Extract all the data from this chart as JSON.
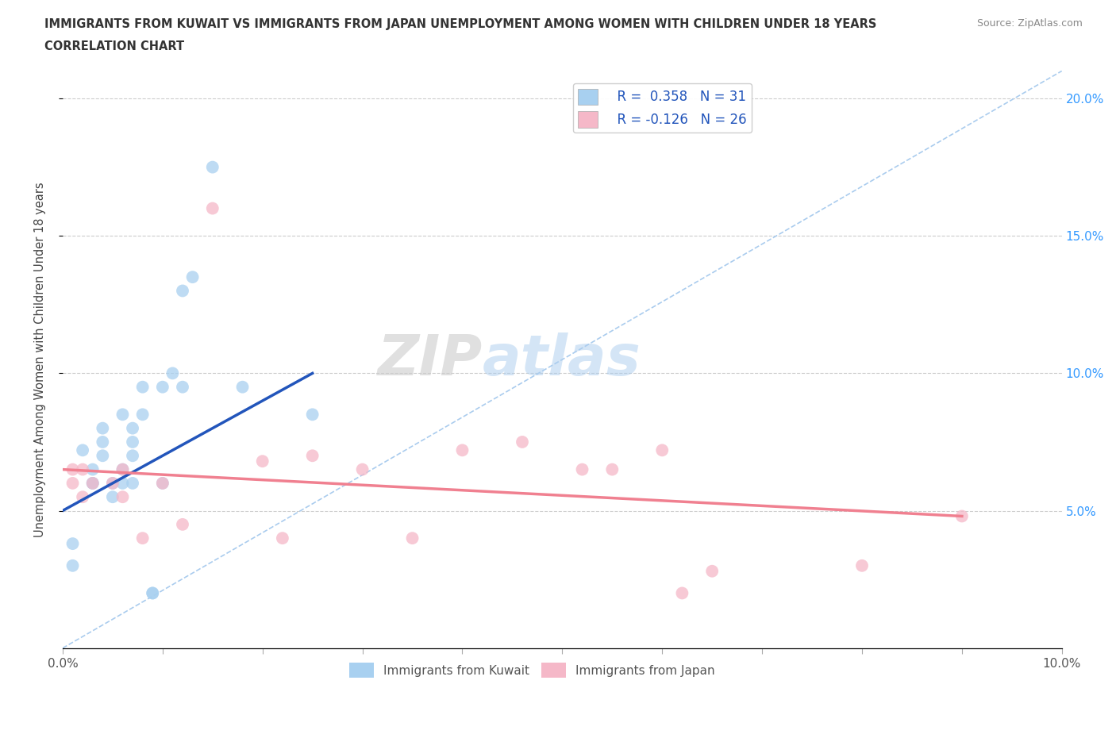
{
  "title_line1": "IMMIGRANTS FROM KUWAIT VS IMMIGRANTS FROM JAPAN UNEMPLOYMENT AMONG WOMEN WITH CHILDREN UNDER 18 YEARS",
  "title_line2": "CORRELATION CHART",
  "source": "Source: ZipAtlas.com",
  "ylabel": "Unemployment Among Women with Children Under 18 years",
  "legend_label1": "Immigrants from Kuwait",
  "legend_label2": "Immigrants from Japan",
  "R1": 0.358,
  "N1": 31,
  "R2": -0.126,
  "N2": 26,
  "color_kuwait": "#a8d0f0",
  "color_japan": "#f5b8c8",
  "trendline_kuwait": "#2255bb",
  "trendline_japan": "#f08090",
  "diag_color": "#aaccee",
  "xlim": [
    0.0,
    0.1
  ],
  "ylim": [
    0.0,
    0.21
  ],
  "yticks_right": [
    0.05,
    0.1,
    0.15,
    0.2
  ],
  "watermark_ZIP": "ZIP",
  "watermark_atlas": "atlas",
  "kuwait_x": [
    0.001,
    0.001,
    0.002,
    0.003,
    0.003,
    0.003,
    0.004,
    0.004,
    0.004,
    0.005,
    0.005,
    0.006,
    0.006,
    0.006,
    0.007,
    0.007,
    0.007,
    0.007,
    0.008,
    0.008,
    0.009,
    0.009,
    0.01,
    0.01,
    0.011,
    0.012,
    0.012,
    0.013,
    0.015,
    0.018,
    0.025
  ],
  "kuwait_y": [
    0.038,
    0.03,
    0.072,
    0.06,
    0.065,
    0.06,
    0.07,
    0.08,
    0.075,
    0.06,
    0.055,
    0.06,
    0.065,
    0.085,
    0.06,
    0.07,
    0.075,
    0.08,
    0.085,
    0.095,
    0.02,
    0.02,
    0.06,
    0.095,
    0.1,
    0.095,
    0.13,
    0.135,
    0.175,
    0.095,
    0.085
  ],
  "japan_x": [
    0.001,
    0.001,
    0.002,
    0.002,
    0.003,
    0.005,
    0.006,
    0.006,
    0.008,
    0.01,
    0.012,
    0.015,
    0.02,
    0.022,
    0.025,
    0.03,
    0.035,
    0.04,
    0.046,
    0.052,
    0.055,
    0.06,
    0.062,
    0.065,
    0.08,
    0.09
  ],
  "japan_y": [
    0.06,
    0.065,
    0.055,
    0.065,
    0.06,
    0.06,
    0.055,
    0.065,
    0.04,
    0.06,
    0.045,
    0.16,
    0.068,
    0.04,
    0.07,
    0.065,
    0.04,
    0.072,
    0.075,
    0.065,
    0.065,
    0.072,
    0.02,
    0.028,
    0.03,
    0.048
  ],
  "k_trend_x": [
    0.0,
    0.025
  ],
  "k_trend_y": [
    0.05,
    0.1
  ],
  "j_trend_x": [
    0.0,
    0.09
  ],
  "j_trend_y": [
    0.065,
    0.048
  ]
}
